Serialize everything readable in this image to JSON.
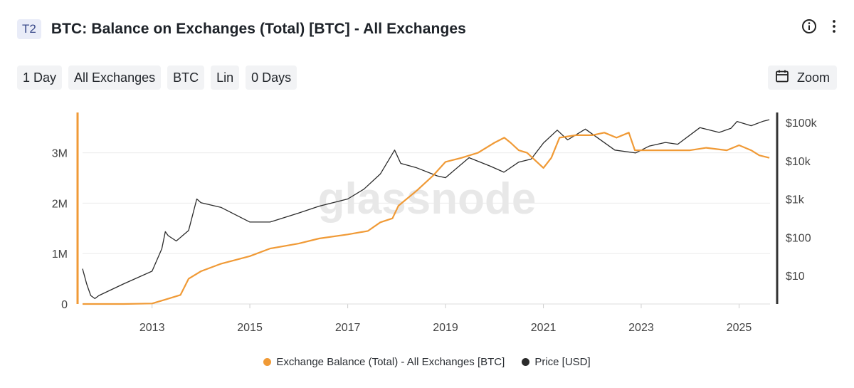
{
  "header": {
    "badge": "T2",
    "title": "BTC: Balance on Exchanges (Total) [BTC] - All Exchanges",
    "info_icon": "info-circle-icon",
    "menu_icon": "vertical-dots-icon"
  },
  "toolbar": {
    "chips": [
      "1 Day",
      "All Exchanges",
      "BTC",
      "Lin",
      "0 Days"
    ],
    "zoom_label": "Zoom",
    "zoom_icon": "calendar-icon"
  },
  "watermark": "glassnode",
  "colors": {
    "balance": "#f09a36",
    "price": "#2b2b2b",
    "grid": "#ececec",
    "text": "#444444"
  },
  "chart_data": {
    "type": "line",
    "title": "BTC: Balance on Exchanges (Total) [BTC] - All Exchanges",
    "x_ticks": [
      "2013",
      "2015",
      "2017",
      "2019",
      "2021",
      "2023",
      "2025"
    ],
    "y_left": {
      "ticks": [
        "0",
        "1M",
        "2M",
        "3M"
      ],
      "values": [
        0,
        1000000,
        2000000,
        3000000
      ],
      "ylim": [
        0,
        3800000
      ],
      "scale": "linear"
    },
    "y_right": {
      "ticks": [
        "$10",
        "$100",
        "$1k",
        "$10k",
        "$100k"
      ],
      "values": [
        10,
        100,
        1000,
        10000,
        100000
      ],
      "scale": "log"
    },
    "grid": true,
    "legend_position": "bottom",
    "series": [
      {
        "name": "Exchange Balance (Total) - All Exchanges [BTC]",
        "axis": "left",
        "color": "#f09a36",
        "x": [
          "2011-08-01",
          "2012-06-01",
          "2013-01-01",
          "2013-04-01",
          "2013-08-01",
          "2013-10-01",
          "2014-01-01",
          "2014-06-01",
          "2015-01-01",
          "2015-06-01",
          "2016-01-01",
          "2016-06-01",
          "2017-01-01",
          "2017-06-01",
          "2017-09-01",
          "2017-12-01",
          "2018-01-15",
          "2018-06-01",
          "2018-10-01",
          "2019-01-01",
          "2019-05-01",
          "2019-09-01",
          "2020-01-01",
          "2020-03-15",
          "2020-05-01",
          "2020-07-01",
          "2020-09-01",
          "2020-11-01",
          "2021-01-01",
          "2021-03-01",
          "2021-05-01",
          "2021-09-01",
          "2022-01-01",
          "2022-04-01",
          "2022-07-01",
          "2022-10-01",
          "2022-11-15",
          "2023-01-01",
          "2023-06-01",
          "2024-01-01",
          "2024-05-01",
          "2024-10-01",
          "2025-01-01",
          "2025-04-01",
          "2025-06-01",
          "2025-08-15"
        ],
        "values": [
          0,
          0,
          10000,
          80000,
          180000,
          500000,
          650000,
          800000,
          950000,
          1100000,
          1200000,
          1300000,
          1380000,
          1450000,
          1620000,
          1700000,
          1950000,
          2250000,
          2550000,
          2820000,
          2900000,
          3000000,
          3200000,
          3300000,
          3200000,
          3050000,
          3000000,
          2850000,
          2700000,
          2900000,
          3300000,
          3350000,
          3350000,
          3400000,
          3300000,
          3400000,
          3050000,
          3050000,
          3050000,
          3050000,
          3100000,
          3050000,
          3150000,
          3050000,
          2950000,
          2900000
        ]
      },
      {
        "name": "Price [USD]",
        "axis": "right",
        "color": "#2b2b2b",
        "x": [
          "2011-08-01",
          "2011-09-01",
          "2011-10-01",
          "2011-11-01",
          "2011-12-01",
          "2012-06-01",
          "2013-01-01",
          "2013-03-15",
          "2013-04-10",
          "2013-05-01",
          "2013-07-01",
          "2013-10-01",
          "2013-12-01",
          "2014-01-01",
          "2014-06-01",
          "2015-01-01",
          "2015-06-01",
          "2016-01-01",
          "2016-06-01",
          "2017-01-01",
          "2017-05-01",
          "2017-09-01",
          "2017-12-17",
          "2018-02-01",
          "2018-06-01",
          "2018-11-01",
          "2019-01-01",
          "2019-06-26",
          "2019-12-01",
          "2020-03-12",
          "2020-07-01",
          "2020-10-01",
          "2021-01-01",
          "2021-04-14",
          "2021-07-01",
          "2021-11-10",
          "2022-06-18",
          "2022-11-21",
          "2023-03-01",
          "2023-07-01",
          "2023-10-01",
          "2024-03-14",
          "2024-08-05",
          "2024-11-01",
          "2024-12-17",
          "2025-04-01",
          "2025-07-01",
          "2025-08-15"
        ],
        "values": [
          15,
          6,
          3,
          2.5,
          3,
          6,
          13,
          50,
          140,
          110,
          80,
          150,
          1000,
          800,
          600,
          250,
          250,
          430,
          650,
          1000,
          1800,
          4500,
          19000,
          8500,
          6500,
          4000,
          3600,
          12000,
          7200,
          5000,
          9200,
          11000,
          29000,
          63000,
          35000,
          67000,
          19000,
          16000,
          24000,
          30000,
          27000,
          73000,
          55000,
          70000,
          106000,
          82000,
          108000,
          118000
        ]
      }
    ]
  }
}
